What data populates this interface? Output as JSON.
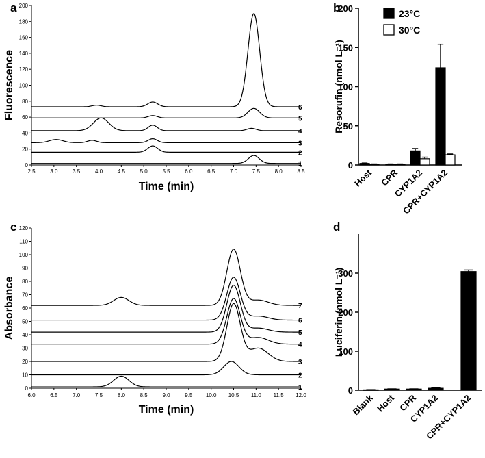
{
  "chart_data": [
    {
      "panel": "a",
      "type": "line",
      "xlabel": "Time (min)",
      "ylabel": "Fluorescence",
      "xlim": [
        2.5,
        8.5
      ],
      "ylim": [
        0,
        200
      ],
      "xticks": [
        2.5,
        3.0,
        3.5,
        4.0,
        4.5,
        5.0,
        5.5,
        6.0,
        6.5,
        7.0,
        7.5,
        8.0,
        8.5
      ],
      "xtick_labels": [
        "2.5",
        "3.0",
        "3.5",
        "4.0",
        "4.5",
        "5.0",
        "5.5",
        "6.0",
        "6.5",
        "7.0",
        "7.5",
        "8.0",
        "8.5"
      ],
      "yticks": [
        0,
        20,
        40,
        60,
        80,
        100,
        120,
        140,
        160,
        180,
        200
      ],
      "ytick_labels": [
        "0",
        "20",
        "40",
        "60",
        "80",
        "100",
        "120",
        "140",
        "160",
        "180",
        "200"
      ],
      "series": [
        {
          "name": "1",
          "baseline": 2,
          "peaks": [
            [
              7.45,
              10,
              0.12
            ]
          ]
        },
        {
          "name": "2",
          "baseline": 16,
          "peaks": [
            [
              5.2,
              8,
              0.11
            ]
          ]
        },
        {
          "name": "3",
          "baseline": 28,
          "peaks": [
            [
              3.05,
              4,
              0.15
            ],
            [
              3.85,
              3,
              0.1
            ],
            [
              5.2,
              5,
              0.1
            ]
          ]
        },
        {
          "name": "4",
          "baseline": 43,
          "peaks": [
            [
              4.05,
              16,
              0.17
            ],
            [
              5.2,
              7,
              0.1
            ],
            [
              7.4,
              3,
              0.1
            ]
          ]
        },
        {
          "name": "5",
          "baseline": 59,
          "peaks": [
            [
              5.2,
              3,
              0.1
            ],
            [
              7.45,
              12,
              0.13
            ]
          ]
        },
        {
          "name": "6",
          "baseline": 73,
          "peaks": [
            [
              3.95,
              2,
              0.1
            ],
            [
              5.2,
              6,
              0.11
            ],
            [
              7.45,
              117,
              0.13
            ]
          ]
        }
      ]
    },
    {
      "panel": "b",
      "type": "bar",
      "ylabel": "Resorufin (nmol L⁻¹)",
      "ylim": [
        0,
        200
      ],
      "yticks": [
        0,
        50,
        100,
        150,
        200
      ],
      "ytick_labels": [
        "0",
        "50",
        "100",
        "150",
        "200"
      ],
      "categories": [
        "Host",
        "CPR",
        "CYP1A2",
        "CPR+CYP1A2"
      ],
      "series": [
        {
          "name": "23°C",
          "fill": "#000000",
          "values": [
            2,
            1,
            18,
            124
          ],
          "errors": [
            0.5,
            0.3,
            3,
            30
          ]
        },
        {
          "name": "30°C",
          "fill": "#ffffff",
          "values": [
            1,
            1,
            8,
            13
          ],
          "errors": [
            0.3,
            0.3,
            2,
            1
          ]
        }
      ]
    },
    {
      "panel": "c",
      "type": "line",
      "xlabel": "Time (min)",
      "ylabel": "Absorbance",
      "xlim": [
        6.0,
        12.0
      ],
      "ylim": [
        0,
        120
      ],
      "xticks": [
        6.0,
        6.5,
        7.0,
        7.5,
        8.0,
        8.5,
        9.0,
        9.5,
        10.0,
        10.5,
        11.0,
        11.5,
        12.0
      ],
      "xtick_labels": [
        "6.0",
        "6.5",
        "7.0",
        "7.5",
        "8.0",
        "8.5",
        "9.0",
        "9.5",
        "10.0",
        "10.5",
        "11.0",
        "11.5",
        "12.0"
      ],
      "yticks": [
        0,
        10,
        20,
        30,
        40,
        50,
        60,
        70,
        80,
        90,
        100,
        110,
        120
      ],
      "ytick_labels": [
        "0",
        "10",
        "20",
        "30",
        "40",
        "50",
        "60",
        "70",
        "80",
        "90",
        "100",
        "110",
        "120"
      ],
      "series": [
        {
          "name": "1",
          "baseline": 1,
          "peaks": [
            [
              8.0,
              8,
              0.17
            ]
          ]
        },
        {
          "name": "2",
          "baseline": 10,
          "peaks": [
            [
              10.45,
              10,
              0.17
            ]
          ]
        },
        {
          "name": "3",
          "baseline": 20,
          "peaks": [
            [
              10.5,
              43,
              0.15
            ],
            [
              11.05,
              10,
              0.22
            ]
          ]
        },
        {
          "name": "4",
          "baseline": 33,
          "peaks": [
            [
              10.5,
              34,
              0.15
            ],
            [
              11.05,
              5,
              0.22
            ]
          ]
        },
        {
          "name": "5",
          "baseline": 42,
          "peaks": [
            [
              10.5,
              35,
              0.15
            ],
            [
              11.05,
              3,
              0.22
            ]
          ]
        },
        {
          "name": "6",
          "baseline": 51,
          "peaks": [
            [
              10.5,
              32,
              0.15
            ],
            [
              11.05,
              3,
              0.22
            ]
          ]
        },
        {
          "name": "7",
          "baseline": 62,
          "peaks": [
            [
              8.0,
              6,
              0.17
            ],
            [
              10.5,
              42,
              0.15
            ],
            [
              11.05,
              4,
              0.22
            ]
          ]
        }
      ]
    },
    {
      "panel": "d",
      "type": "bar",
      "ylabel": "Luciferin (nmol L⁻¹)",
      "ylim": [
        0,
        400
      ],
      "yticks": [
        0,
        100,
        200,
        300
      ],
      "ytick_labels": [
        "0",
        "100",
        "200",
        "300"
      ],
      "categories": [
        "Blank",
        "Host",
        "CPR",
        "CYP1A2",
        "CPR+CYP1A2"
      ],
      "series": [
        {
          "name": "",
          "fill": "#000000",
          "values": [
            1,
            3,
            3,
            5,
            304
          ],
          "errors": [
            0.5,
            0.5,
            0.5,
            1,
            4
          ]
        }
      ]
    }
  ]
}
